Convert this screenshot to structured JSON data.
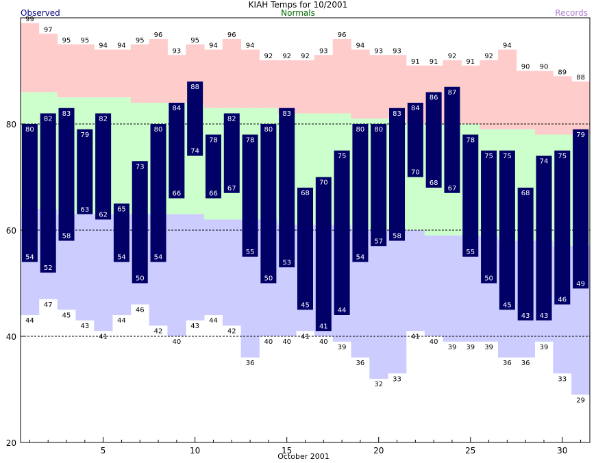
{
  "header": {
    "title": "KIAH Temps for 10/2001",
    "observed_label": "Observed",
    "normals_label": "Normals",
    "records_label": "Records"
  },
  "colors": {
    "observed_bar": "#000066",
    "normal_band": "#ccffcc",
    "record_high_band": "#ffcccc",
    "record_low_band": "#ccccff",
    "observed_text": "#000080",
    "normals_text": "#006400",
    "records_text": "#b080d0"
  },
  "chart_data": {
    "type": "bar",
    "title": "KIAH Temps for 10/2001",
    "xlabel": "October 2001",
    "ylabel": "",
    "xlim": [
      0.5,
      31.5
    ],
    "ylim": [
      20,
      100
    ],
    "x_ticks": [
      5,
      10,
      15,
      20,
      25,
      30
    ],
    "y_ticks": [
      20,
      40,
      60,
      80
    ],
    "gridlines_y": [
      40,
      60,
      80
    ],
    "days": [
      1,
      2,
      3,
      4,
      5,
      6,
      7,
      8,
      9,
      10,
      11,
      12,
      13,
      14,
      15,
      16,
      17,
      18,
      19,
      20,
      21,
      22,
      23,
      24,
      25,
      26,
      27,
      28,
      29,
      30,
      31
    ],
    "series": [
      {
        "name": "Observed",
        "role": "observed_high",
        "values": [
          80,
          82,
          83,
          79,
          82,
          65,
          73,
          80,
          84,
          88,
          78,
          82,
          78,
          80,
          83,
          68,
          70,
          75,
          80,
          80,
          83,
          84,
          86,
          87,
          78,
          75,
          75,
          68,
          74,
          75,
          79
        ]
      },
      {
        "name": "Observed",
        "role": "observed_low",
        "values": [
          54,
          52,
          58,
          63,
          62,
          54,
          50,
          54,
          66,
          74,
          66,
          67,
          55,
          50,
          53,
          45,
          41,
          44,
          54,
          57,
          58,
          70,
          68,
          67,
          55,
          50,
          45,
          43,
          43,
          46,
          49
        ]
      },
      {
        "name": "Records",
        "role": "record_high",
        "values": [
          99,
          97,
          95,
          95,
          94,
          94,
          95,
          96,
          93,
          95,
          94,
          96,
          94,
          92,
          92,
          92,
          93,
          96,
          94,
          93,
          93,
          91,
          91,
          92,
          91,
          92,
          94,
          90,
          90,
          89,
          88
        ]
      },
      {
        "name": "Records",
        "role": "record_low",
        "values": [
          44,
          47,
          45,
          43,
          41,
          44,
          46,
          42,
          40,
          43,
          44,
          42,
          36,
          40,
          40,
          41,
          40,
          39,
          36,
          32,
          33,
          41,
          40,
          39,
          39,
          39,
          36,
          36,
          39,
          33,
          29
        ]
      },
      {
        "name": "Normals",
        "role": "normal_high",
        "values": [
          86,
          86,
          85,
          85,
          85,
          85,
          84,
          84,
          84,
          84,
          83,
          83,
          83,
          83,
          82,
          82,
          82,
          82,
          81,
          81,
          81,
          80,
          80,
          80,
          80,
          79,
          79,
          79,
          78,
          78,
          78
        ]
      },
      {
        "name": "Normals",
        "role": "normal_low",
        "values": [
          64,
          64,
          63,
          63,
          63,
          63,
          63,
          63,
          63,
          63,
          62,
          62,
          62,
          62,
          61,
          61,
          61,
          61,
          60,
          60,
          60,
          60,
          59,
          59,
          59,
          59,
          58,
          58,
          58,
          57,
          57
        ]
      }
    ]
  }
}
